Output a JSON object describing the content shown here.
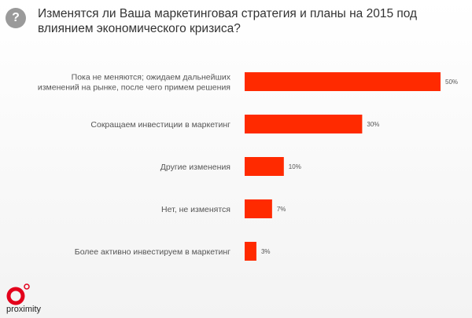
{
  "header": {
    "icon": "question-icon",
    "title": "Изменятся ли Ваша маркетинговая стратегия и планы на 2015 под влиянием экономического кризиса?"
  },
  "chart_data": {
    "type": "bar",
    "orientation": "horizontal",
    "categories": [
      [
        "Пока не меняются; ожидаем дальнейших",
        "изменений на рынке, после чего примем решения"
      ],
      [
        "Сокращаем инвестиции в маркетинг"
      ],
      [
        "Другие изменения"
      ],
      [
        "Нет, не изменятся"
      ],
      [
        "Более активно инвестируем в маркетинг"
      ]
    ],
    "values": [
      50,
      30,
      10,
      7,
      3
    ],
    "value_labels": [
      "50%",
      "30%",
      "10%",
      "7%",
      "3%"
    ],
    "xlim": [
      0,
      50
    ],
    "unit": "%",
    "bar_color": "#ff2a00",
    "grid": false,
    "legend": "none"
  },
  "brand": {
    "name": "proximity",
    "color": "#e3001b"
  }
}
